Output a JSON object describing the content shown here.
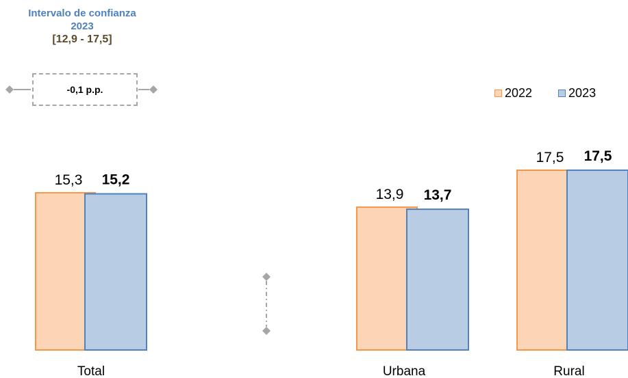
{
  "confidence_interval": {
    "title": "Intervalo de confianza 2023",
    "range": "[12,9 - 17,5]"
  },
  "change_label": "-0,1 p.p.",
  "legend": [
    {
      "label": "2022",
      "fill": "#fbd5b5",
      "stroke": "#f79646"
    },
    {
      "label": "2023",
      "fill": "#b8cce4",
      "stroke": "#4f81bd"
    }
  ],
  "chart_data": {
    "type": "bar",
    "categories": [
      "Total",
      "Urbana",
      "Rural"
    ],
    "series": [
      {
        "name": "2022",
        "values": [
          15.3,
          13.9,
          17.5
        ],
        "labels": [
          "15,3",
          "13,9",
          "17,5"
        ],
        "fill": "#fbd5b5",
        "stroke": "#f79646",
        "bold": false
      },
      {
        "name": "2023",
        "values": [
          15.2,
          13.7,
          17.5
        ],
        "labels": [
          "15,2",
          "13,7",
          "17,5"
        ],
        "fill": "#b8cce4",
        "stroke": "#4f81bd",
        "bold": true
      }
    ],
    "ylim": [
      0,
      17.5
    ]
  }
}
